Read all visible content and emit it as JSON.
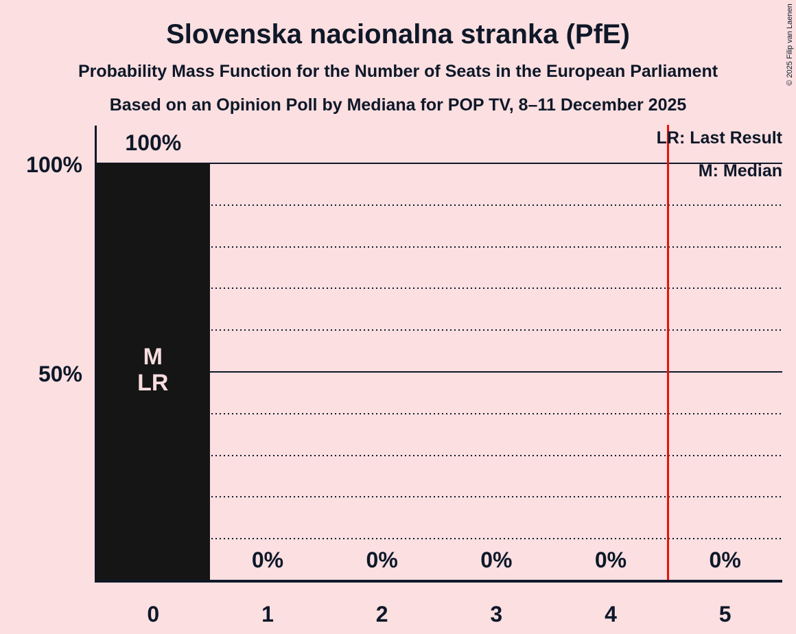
{
  "title": "Slovenska nacionalna stranka (PfE)",
  "subtitle1": "Probability Mass Function for the Number of Seats in the European Parliament",
  "subtitle2": "Based on an Opinion Poll by Mediana for POP TV, 8–11 December 2025",
  "copyright": "© 2025 Filip van Laenen",
  "legend": {
    "last_result": "LR: Last Result",
    "median": "M: Median"
  },
  "y_axis": {
    "label_100": "100%",
    "label_50": "50%"
  },
  "chart_data": {
    "type": "bar",
    "title": "Slovenska nacionalna stranka (PfE)",
    "subtitle": "Probability Mass Function for the Number of Seats in the European Parliament",
    "poll_note": "Based on an Opinion Poll by Mediana for POP TV, 8–11 December 2025",
    "xlabel": "",
    "ylabel": "",
    "categories": [
      "0",
      "1",
      "2",
      "3",
      "4",
      "5"
    ],
    "values": [
      100,
      0,
      0,
      0,
      0,
      0
    ],
    "value_labels": [
      "100%",
      "0%",
      "0%",
      "0%",
      "0%",
      "0%"
    ],
    "ylim": [
      0,
      100
    ],
    "y_tick_labels": [
      "100%",
      "50%"
    ],
    "solid_gridlines_pct": [
      100,
      50
    ],
    "dotted_gridlines_pct": [
      90,
      80,
      70,
      60,
      40,
      30,
      20,
      10
    ],
    "median_category": "0",
    "last_result_category": "0",
    "median_marker": "M",
    "last_result_marker": "LR",
    "red_line_x": 4.5,
    "legend": [
      "LR: Last Result",
      "M: Median"
    ],
    "legend_position": "top-right",
    "grid": "dotted-horizontal",
    "colors": {
      "background": "#fbdfe1",
      "bar": "#151515",
      "text": "#0e1828",
      "bar_label": "#f8dce0",
      "red_line": "#e81109"
    }
  }
}
